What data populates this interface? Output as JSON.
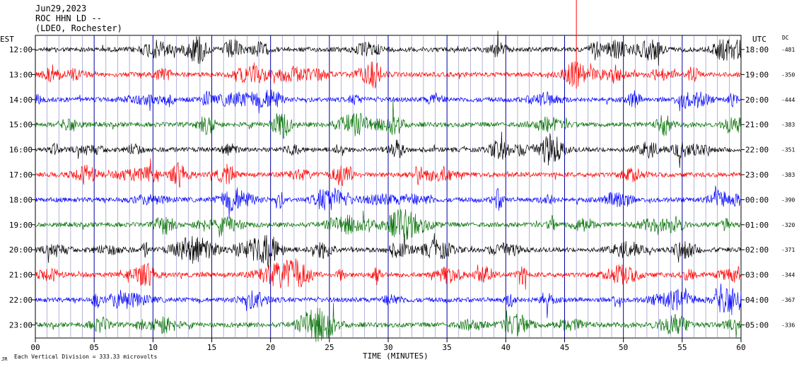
{
  "header": {
    "date": "Jun29,2023",
    "station": "ROC HHN LD --",
    "network": "(LDEO, Rochester)"
  },
  "footer": {
    "scale_text": "Each Vertical Division =  333.33 microvolts",
    "tiny_mark": "JR"
  },
  "chart_data": {
    "type": "line",
    "title": "",
    "xlabel": "TIME (MINUTES)",
    "left_axis_label": "EST",
    "right_axis_label": "UTC",
    "dc_label": "DC",
    "xlim": [
      0,
      60
    ],
    "x_ticks": [
      "00",
      "05",
      "10",
      "15",
      "20",
      "25",
      "30",
      "35",
      "40",
      "45",
      "50",
      "55",
      "60"
    ],
    "grid": true,
    "rows": [
      {
        "est": "12:00",
        "utc": "18:00",
        "dc": "-481",
        "color": "#000000"
      },
      {
        "est": "13:00",
        "utc": "19:00",
        "dc": "-350",
        "color": "#ff0000"
      },
      {
        "est": "14:00",
        "utc": "20:00",
        "dc": "-444",
        "color": "#0000ff"
      },
      {
        "est": "15:00",
        "utc": "21:00",
        "dc": "-383",
        "color": "#007000"
      },
      {
        "est": "16:00",
        "utc": "22:00",
        "dc": "-351",
        "color": "#000000"
      },
      {
        "est": "17:00",
        "utc": "23:00",
        "dc": "-383",
        "color": "#ff0000"
      },
      {
        "est": "18:00",
        "utc": "00:00",
        "dc": "-390",
        "color": "#0000ff"
      },
      {
        "est": "19:00",
        "utc": "01:00",
        "dc": "-320",
        "color": "#007000"
      },
      {
        "est": "20:00",
        "utc": "02:00",
        "dc": "-371",
        "color": "#000000"
      },
      {
        "est": "21:00",
        "utc": "03:00",
        "dc": "-344",
        "color": "#ff0000"
      },
      {
        "est": "22:00",
        "utc": "04:00",
        "dc": "-367",
        "color": "#0000ff"
      },
      {
        "est": "23:00",
        "utc": "05:00",
        "dc": "-336",
        "color": "#007000"
      }
    ]
  }
}
